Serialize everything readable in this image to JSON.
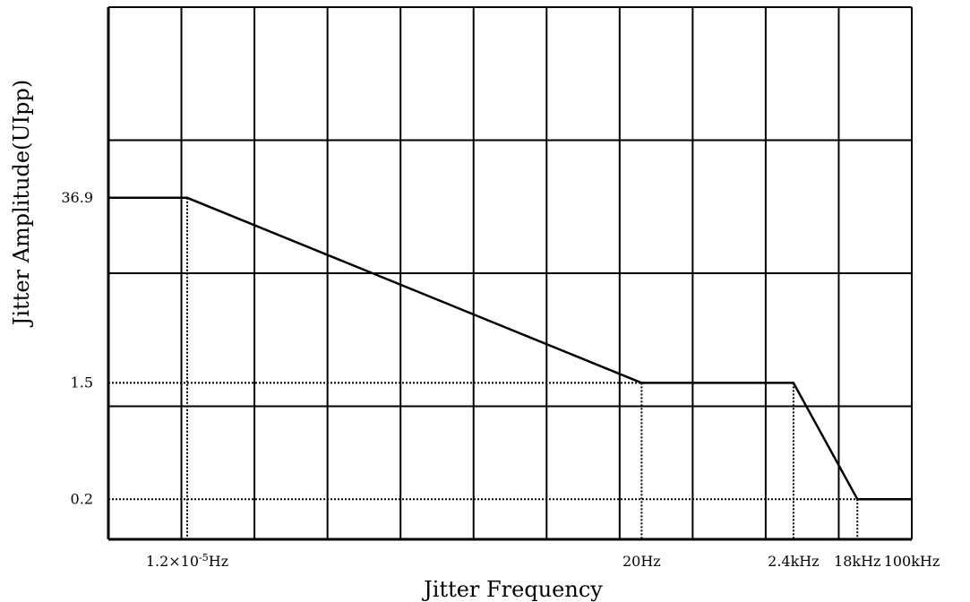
{
  "chart_data": {
    "type": "line",
    "title": "",
    "xlabel": "Jitter Frequency",
    "ylabel": "Jitter Amplitude(UIpp)",
    "x_scale": "log",
    "y_scale": "log",
    "grid": true,
    "xlim_hz": [
      1e-06,
      100000.0
    ],
    "ylim": [
      0.1,
      1000
    ],
    "x_tick_labels": [
      {
        "value_hz": 1.2e-05,
        "label_base": "1.2×10",
        "label_sup": "-5",
        "label_unit": "Hz"
      },
      {
        "value_hz": 20,
        "label": "20Hz"
      },
      {
        "value_hz": 2400,
        "label": "2.4kHz"
      },
      {
        "value_hz": 18000,
        "label": "18kHz"
      },
      {
        "value_hz": 100000,
        "label": "100kHz"
      }
    ],
    "y_tick_labels": [
      {
        "value": 36.9,
        "label": "36.9"
      },
      {
        "value": 1.5,
        "label": "1.5"
      },
      {
        "value": 0.2,
        "label": "0.2"
      }
    ],
    "series": [
      {
        "x": [
          1e-06,
          1.2e-05,
          20,
          2400,
          18000,
          100000
        ],
        "y": [
          36.9,
          36.9,
          1.5,
          1.5,
          0.2,
          0.2
        ]
      }
    ],
    "colors": {
      "line": "#000000",
      "grid": "#000000",
      "background": "#ffffff"
    }
  }
}
